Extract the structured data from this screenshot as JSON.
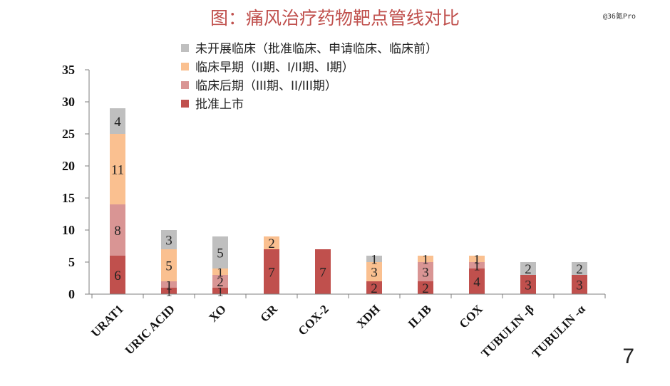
{
  "title": "图：痛风治疗药物靶点管线对比",
  "watermark": "@36氪Pro",
  "slide_number": "7",
  "chart_data": {
    "type": "bar",
    "stacked": true,
    "categories": [
      "URAT1",
      "URIC ACID",
      "XO",
      "GR",
      "COX-2",
      "XDH",
      "IL1B",
      "COX",
      "TUBULIN -β",
      "TUBULIN -α"
    ],
    "series": [
      {
        "name": "批准上市",
        "color": "#c0504d",
        "values": [
          6,
          1,
          1,
          7,
          7,
          2,
          2,
          4,
          3,
          3
        ]
      },
      {
        "name": "临床后期（III期、II/III期）",
        "color": "#d99594",
        "values": [
          8,
          1,
          2,
          0,
          0,
          0,
          3,
          1,
          0,
          0
        ]
      },
      {
        "name": "临床早期（II期、I/II期、I期）",
        "color": "#fac090",
        "values": [
          11,
          5,
          1,
          2,
          0,
          3,
          1,
          1,
          0,
          0
        ]
      },
      {
        "name": "未开展临床（批准临床、申请临床、临床前）",
        "color": "#bfbfbf",
        "values": [
          4,
          3,
          5,
          0,
          0,
          1,
          0,
          0,
          2,
          2
        ]
      }
    ],
    "ylim": [
      0,
      35
    ],
    "yticks": [
      0,
      5,
      10,
      15,
      20,
      25,
      30,
      35
    ],
    "legend_order": [
      3,
      2,
      1,
      0
    ],
    "legend_position": "top-left"
  }
}
